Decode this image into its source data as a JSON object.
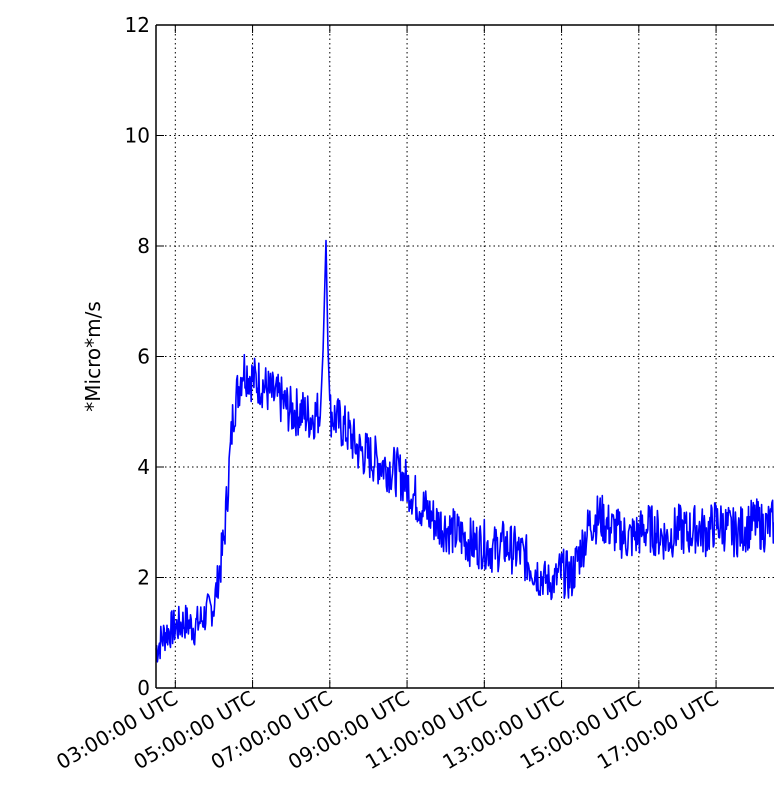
{
  "chart_data": {
    "type": "line",
    "title": "",
    "xlabel": "",
    "ylabel": "*Micro*m/s",
    "ylim": [
      0,
      12
    ],
    "xlim_hours": [
      2.5,
      18.5
    ],
    "yticks": [
      "0",
      "2",
      "4",
      "6",
      "8",
      "10",
      "12"
    ],
    "xticks": [
      {
        "hour": 3,
        "label": "03:00:00 UTC"
      },
      {
        "hour": 5,
        "label": "05:00:00 UTC"
      },
      {
        "hour": 7,
        "label": "07:00:00 UTC"
      },
      {
        "hour": 9,
        "label": "09:00:00 UTC"
      },
      {
        "hour": 11,
        "label": "11:00:00 UTC"
      },
      {
        "hour": 13,
        "label": "13:00:00 UTC"
      },
      {
        "hour": 15,
        "label": "15:00:00 UTC"
      },
      {
        "hour": 17,
        "label": "17:00:00 UTC"
      }
    ],
    "grid": true,
    "grid_style": "dotted",
    "line_color": "#0000ff",
    "series": [
      {
        "name": "",
        "x": [
          2.5,
          2.75,
          3.0,
          3.25,
          3.5,
          3.75,
          4.0,
          4.25,
          4.5,
          4.75,
          5.0,
          5.25,
          5.5,
          5.75,
          6.0,
          6.25,
          6.5,
          6.75,
          6.9,
          7.0,
          7.25,
          7.5,
          7.75,
          8.0,
          8.25,
          8.5,
          8.75,
          9.0,
          9.25,
          9.5,
          9.75,
          10.0,
          10.25,
          10.5,
          10.75,
          11.0,
          11.25,
          11.5,
          11.75,
          12.0,
          12.25,
          12.5,
          12.75,
          13.0,
          13.25,
          13.5,
          13.75,
          14.0,
          14.25,
          14.5,
          14.75,
          15.0,
          15.25,
          15.5,
          15.75,
          16.0,
          16.25,
          16.5,
          16.75,
          17.0,
          17.25,
          17.5,
          17.75,
          18.0,
          18.25,
          18.5
        ],
        "values": [
          0.7,
          1.0,
          1.1,
          1.2,
          1.1,
          1.3,
          1.5,
          2.6,
          5.0,
          5.8,
          5.6,
          5.5,
          5.3,
          5.2,
          5.0,
          5.0,
          4.9,
          5.0,
          8.1,
          5.0,
          4.8,
          4.6,
          4.3,
          4.2,
          4.1,
          4.0,
          3.9,
          3.7,
          3.4,
          3.2,
          3.0,
          2.9,
          2.8,
          2.7,
          2.6,
          2.6,
          2.5,
          2.6,
          2.5,
          2.4,
          2.2,
          2.0,
          1.9,
          2.1,
          2.0,
          2.5,
          3.0,
          3.1,
          2.9,
          2.8,
          2.7,
          2.8,
          2.9,
          2.8,
          2.7,
          2.9,
          2.8,
          2.9,
          2.8,
          3.0,
          2.9,
          2.8,
          2.9,
          3.0,
          2.9,
          3.0
        ]
      }
    ]
  }
}
